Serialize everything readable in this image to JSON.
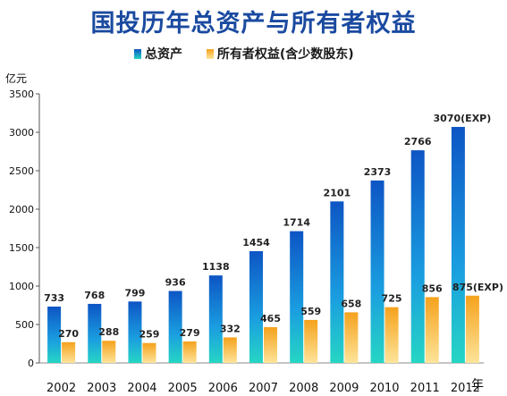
{
  "chart_data": {
    "type": "bar",
    "title": "国投历年总资产与所有者权益",
    "y_unit": "亿元",
    "x_unit": "年",
    "categories": [
      "2002",
      "2003",
      "2004",
      "2005",
      "2006",
      "2007",
      "2008",
      "2009",
      "2010",
      "2011",
      "2012"
    ],
    "series": [
      {
        "name": "总资产",
        "values": [
          733,
          768,
          799,
          936,
          1138,
          1454,
          1714,
          2101,
          2373,
          2766,
          3070
        ],
        "labels": [
          "733",
          "768",
          "799",
          "936",
          "1138",
          "1454",
          "1714",
          "2101",
          "2373",
          "2766",
          "3070(EXP)"
        ],
        "color_top": "#0d55c4",
        "color_bottom": "#26d6c4"
      },
      {
        "name": "所有者权益(含少数股东)",
        "values": [
          270,
          288,
          259,
          279,
          332,
          465,
          559,
          658,
          725,
          856,
          875
        ],
        "labels": [
          "270",
          "288",
          "259",
          "279",
          "332",
          "465",
          "559",
          "658",
          "725",
          "856",
          "875(EXP)"
        ],
        "color_top": "#f5a21c",
        "color_bottom": "#fde49a"
      }
    ],
    "yticks": [
      "0",
      "500",
      "1000",
      "1500",
      "2000",
      "2500",
      "3000",
      "3500"
    ],
    "ylim": [
      0,
      3500
    ],
    "grid": false,
    "legend_position": "top"
  }
}
